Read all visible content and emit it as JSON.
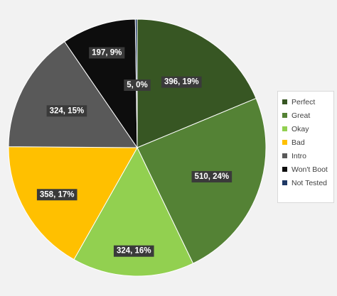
{
  "chart_data": {
    "type": "pie",
    "title": "",
    "categories": [
      "Perfect",
      "Great",
      "Okay",
      "Bad",
      "Intro",
      "Won't Boot",
      "Not Tested"
    ],
    "values": [
      396,
      510,
      324,
      358,
      324,
      197,
      5
    ],
    "labels": [
      "396, 19%",
      "510, 24%",
      "324, 16%",
      "358, 17%",
      "324, 15%",
      "197, 9%",
      "5, 0%"
    ],
    "colors": [
      "#375623",
      "#548235",
      "#92d050",
      "#ffc000",
      "#595959",
      "#0d0d0d",
      "#1f3864"
    ],
    "legend_position": "right",
    "start_angle": "12 o'clock, clockwise"
  }
}
